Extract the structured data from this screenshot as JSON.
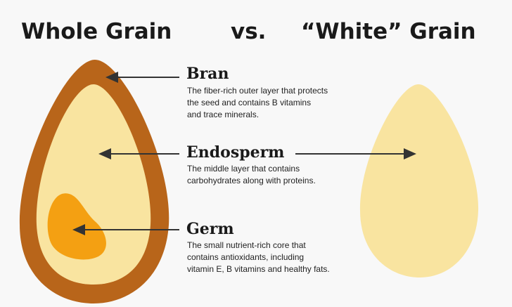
{
  "header": {
    "left": "Whole Grain",
    "middle": "vs.",
    "right": "“White” Grain"
  },
  "parts": [
    {
      "label": "Bran",
      "description": [
        "The fiber-rich outer layer that protects",
        "the seed and contains B vitamins",
        "and trace minerals."
      ]
    },
    {
      "label": "Endosperm",
      "description": [
        "The middle layer that contains",
        "carbohydrates along with proteins."
      ]
    },
    {
      "label": "Germ",
      "description": [
        "The small nutrient-rich core that",
        "contains antioxidants, including",
        "vitamin E, B vitamins and healthy fats."
      ]
    }
  ]
}
